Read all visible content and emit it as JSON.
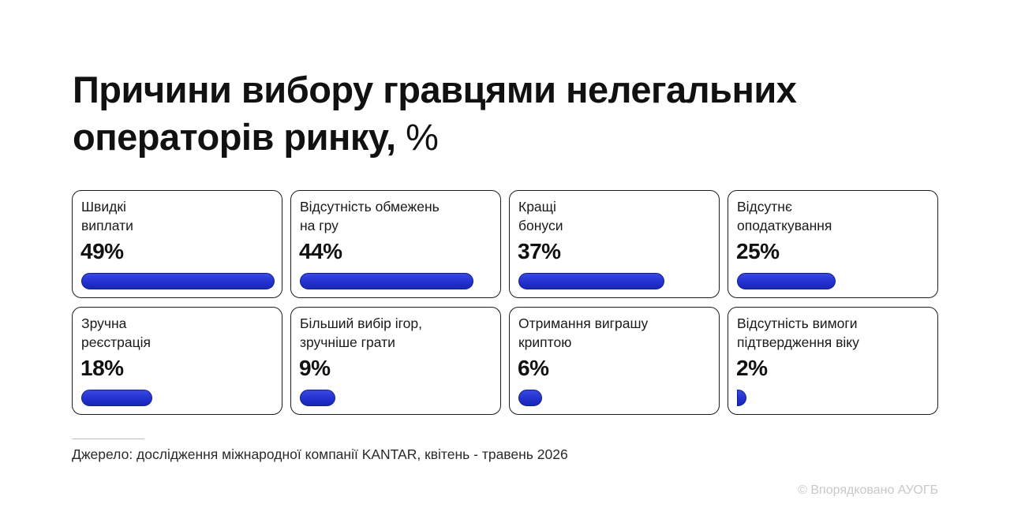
{
  "title": {
    "main": "Причини вибору гравцями нелегальних операторів ринку,",
    "unit": "%"
  },
  "colors": {
    "bar": "#2331cf",
    "text": "#111111",
    "card_border": "#1c1c1c"
  },
  "chart_data": {
    "type": "bar",
    "orientation": "horizontal",
    "unit": "%",
    "xlim": [
      0,
      49
    ],
    "categories": [
      "Швидкі виплати",
      "Відсутність обмежень на гру",
      "Кращі бонуси",
      "Відсутнє оподаткування",
      "Зручна реєстрація",
      "Більший вибір ігор, зручніше грати",
      "Отримання виграшу криптою",
      "Відсутність вимоги підтвердження віку"
    ],
    "values": [
      49,
      44,
      37,
      25,
      18,
      9,
      6,
      2
    ]
  },
  "cards": [
    {
      "line1": "Швидкі",
      "line2": "виплати",
      "value_text": "49%"
    },
    {
      "line1": "Відсутність обмежень",
      "line2": "на гру",
      "value_text": "44%"
    },
    {
      "line1": "Кращі",
      "line2": "бонуси",
      "value_text": "37%"
    },
    {
      "line1": "Відсутнє",
      "line2": "оподаткування",
      "value_text": "25%"
    },
    {
      "line1": "Зручна",
      "line2": "реєстрація",
      "value_text": "18%"
    },
    {
      "line1": "Більший вибір ігор,",
      "line2": "зручніше грати",
      "value_text": "9%"
    },
    {
      "line1": "Отримання виграшу",
      "line2": "криптою",
      "value_text": "6%"
    },
    {
      "line1": "Відсутність вимоги",
      "line2": "підтвердження віку",
      "value_text": "2%"
    }
  ],
  "source": "Джерело: дослідження міжнародної компанії KANTAR, квітень - травень 2026",
  "credit": "© Впорядковано АУОГБ"
}
